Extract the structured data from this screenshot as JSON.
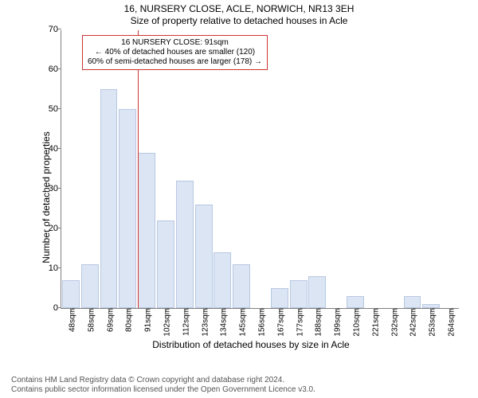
{
  "title_line1": "16, NURSERY CLOSE, ACLE, NORWICH, NR13 3EH",
  "title_line2": "Size of property relative to detached houses in Acle",
  "y_axis_label": "Number of detached properties",
  "x_axis_label": "Distribution of detached houses by size in Acle",
  "chart": {
    "type": "bar",
    "categories": [
      "48sqm",
      "58sqm",
      "69sqm",
      "80sqm",
      "91sqm",
      "102sqm",
      "112sqm",
      "123sqm",
      "134sqm",
      "145sqm",
      "156sqm",
      "167sqm",
      "177sqm",
      "188sqm",
      "199sqm",
      "210sqm",
      "221sqm",
      "232sqm",
      "242sqm",
      "253sqm",
      "264sqm"
    ],
    "values": [
      7,
      11,
      55,
      50,
      39,
      22,
      32,
      26,
      14,
      11,
      0,
      5,
      7,
      8,
      0,
      3,
      0,
      0,
      3,
      1,
      0
    ],
    "ylim": [
      0,
      70
    ],
    "ytick_step": 10,
    "bar_fill": "#dbe5f4",
    "bar_border": "#b8c8e2",
    "axis_color": "#808080",
    "reference_line_category_index": 4,
    "reference_line_color": "#cc3333",
    "background_color": "#ffffff",
    "title_fontsize": 12,
    "label_fontsize": 12,
    "tick_fontsize": 10
  },
  "annotation": {
    "line1": "16 NURSERY CLOSE: 91sqm",
    "line2": "← 40% of detached houses are smaller (120)",
    "line3": "60% of semi-detached houses are larger (178) →",
    "border_color": "#cc3333",
    "background": "#ffffff"
  },
  "footer_line1": "Contains HM Land Registry data © Crown copyright and database right 2024.",
  "footer_line2": "Contains public sector information licensed under the Open Government Licence v3.0."
}
